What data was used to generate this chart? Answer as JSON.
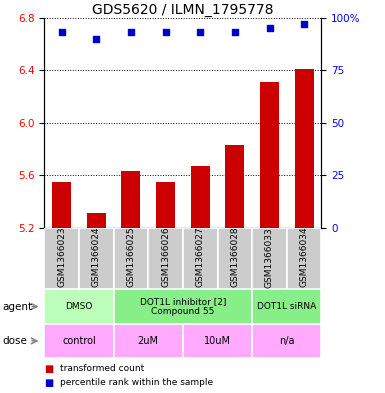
{
  "title": "GDS5620 / ILMN_1795778",
  "samples": [
    "GSM1366023",
    "GSM1366024",
    "GSM1366025",
    "GSM1366026",
    "GSM1366027",
    "GSM1366028",
    "GSM1366033",
    "GSM1366034"
  ],
  "bar_values": [
    5.55,
    5.31,
    5.63,
    5.55,
    5.67,
    5.83,
    6.31,
    6.41
  ],
  "dot_values": [
    93,
    90,
    93,
    93,
    93,
    93,
    95,
    97
  ],
  "ylim_left": [
    5.2,
    6.8
  ],
  "ylim_right": [
    0,
    100
  ],
  "yticks_left": [
    5.2,
    5.6,
    6.0,
    6.4,
    6.8
  ],
  "yticks_right": [
    0,
    25,
    50,
    75,
    100
  ],
  "bar_color": "#cc0000",
  "dot_color": "#0000cc",
  "bar_bottom": 5.2,
  "agent_group_data": [
    {
      "cols": [
        0,
        1
      ],
      "label": "DMSO",
      "color": "#bbffbb"
    },
    {
      "cols": [
        2,
        5
      ],
      "label": "DOT1L inhibitor [2]\nCompound 55",
      "color": "#88ee88"
    },
    {
      "cols": [
        6,
        7
      ],
      "label": "DOT1L siRNA",
      "color": "#88ee88"
    }
  ],
  "dose_group_data": [
    {
      "cols": [
        0,
        1
      ],
      "label": "control",
      "color": "#ffaaff"
    },
    {
      "cols": [
        2,
        3
      ],
      "label": "2uM",
      "color": "#ffaaff"
    },
    {
      "cols": [
        4,
        5
      ],
      "label": "10uM",
      "color": "#ffaaff"
    },
    {
      "cols": [
        6,
        7
      ],
      "label": "n/a",
      "color": "#ffaaff"
    }
  ],
  "agent_label": "agent",
  "dose_label": "dose",
  "legend_bar_label": "transformed count",
  "legend_dot_label": "percentile rank within the sample",
  "bg_color": "#ffffff",
  "label_area_bg": "#cccccc",
  "title_fontsize": 10,
  "tick_fontsize": 7.5,
  "sample_fontsize": 6.5,
  "annot_fontsize": 7
}
